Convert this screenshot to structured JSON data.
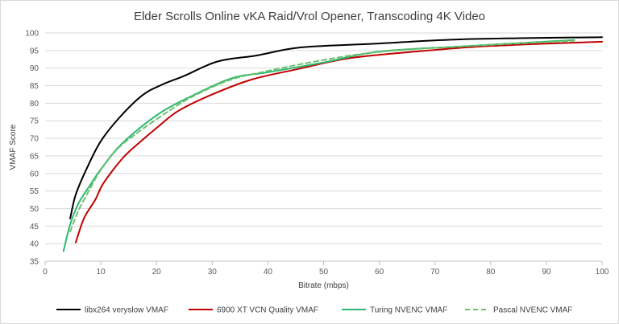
{
  "chart_data": {
    "type": "line",
    "title": "Elder Scrolls Online vKA Raid/Vrol Opener, Transcoding 4K Video",
    "xlabel": "Bitrate (mbps)",
    "ylabel": "VMAF Score",
    "xlim": [
      0,
      100
    ],
    "ylim": [
      35,
      100
    ],
    "x_ticks": [
      0,
      10,
      20,
      30,
      40,
      50,
      60,
      70,
      80,
      90,
      100
    ],
    "y_ticks": [
      35,
      40,
      45,
      50,
      55,
      60,
      65,
      70,
      75,
      80,
      85,
      90,
      95,
      100
    ],
    "grid": true,
    "legend_position": "bottom",
    "series": [
      {
        "name": "libx264 veryslow VMAF",
        "color": "#000000",
        "dash": "solid",
        "points": [
          [
            4.5,
            47.2
          ],
          [
            5.5,
            54
          ],
          [
            7.5,
            61.5
          ],
          [
            10,
            69.2
          ],
          [
            13.5,
            76.2
          ],
          [
            17.5,
            82.3
          ],
          [
            21,
            85.3
          ],
          [
            25,
            87.8
          ],
          [
            31,
            91.9
          ],
          [
            38,
            93.6
          ],
          [
            46,
            95.9
          ],
          [
            60,
            97
          ],
          [
            75,
            98.2
          ],
          [
            100,
            98.8
          ]
        ]
      },
      {
        "name": "6900 XT VCN Quality VMAF",
        "color": "#c00000",
        "dash": "solid",
        "points": [
          [
            5.5,
            40.4
          ],
          [
            7,
            47.3
          ],
          [
            9,
            52.5
          ],
          [
            10.5,
            57.3
          ],
          [
            14,
            64.5
          ],
          [
            17,
            68.9
          ],
          [
            20.5,
            73.6
          ],
          [
            24,
            77.9
          ],
          [
            30,
            82.5
          ],
          [
            37,
            86.7
          ],
          [
            45,
            89.6
          ],
          [
            55,
            92.9
          ],
          [
            68,
            94.9
          ],
          [
            80,
            96.3
          ],
          [
            100,
            97.5
          ]
        ]
      },
      {
        "name": "Turing NVENC VMAF",
        "color": "#2eb872",
        "dash": "solid",
        "points": [
          [
            3.3,
            37.9
          ],
          [
            4.5,
            45.5
          ],
          [
            6,
            51.5
          ],
          [
            8,
            56.5
          ],
          [
            10,
            61.2
          ],
          [
            13,
            67.2
          ],
          [
            16.5,
            72.3
          ],
          [
            21,
            77.6
          ],
          [
            26,
            81.8
          ],
          [
            33.5,
            87.1
          ],
          [
            40,
            88.8
          ],
          [
            50,
            91.6
          ],
          [
            60,
            94.7
          ],
          [
            75,
            96.2
          ],
          [
            95,
            98
          ]
        ]
      },
      {
        "name": "Pascal NVENC VMAF",
        "color": "#70c070",
        "dash": "dashed",
        "points": [
          [
            4.5,
            43.5
          ],
          [
            6,
            49.5
          ],
          [
            8,
            55.5
          ],
          [
            10,
            61
          ],
          [
            13,
            67
          ],
          [
            16.5,
            71.5
          ],
          [
            21,
            76.5
          ],
          [
            26,
            81.5
          ],
          [
            33,
            86.5
          ],
          [
            40,
            89.2
          ],
          [
            50,
            92.3
          ],
          [
            60,
            94.6
          ],
          [
            75,
            96.2
          ],
          [
            95,
            97.8
          ]
        ]
      }
    ]
  }
}
